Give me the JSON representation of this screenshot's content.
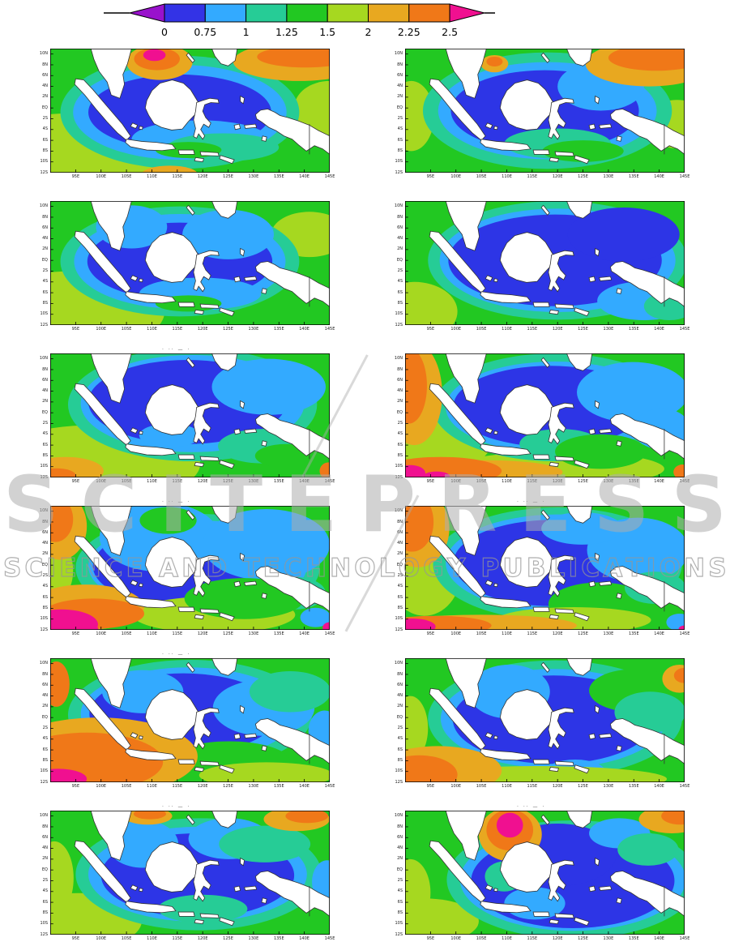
{
  "colorbar": {
    "tick_labels": [
      "0",
      "0.75",
      "1",
      "1.25",
      "1.5",
      "2",
      "2.25",
      "2.5"
    ],
    "segment_colors": [
      "#3333e6",
      "#33aaff",
      "#26cc96",
      "#22c822",
      "#a6d820",
      "#e8a820",
      "#f07818"
    ],
    "left_arrow_color": "#9912cc",
    "right_arrow_color": "#f01090"
  },
  "axes": {
    "lat_labels": [
      "10N",
      "8N",
      "6N",
      "4N",
      "2N",
      "EQ",
      "2S",
      "4S",
      "6S",
      "8S",
      "10S",
      "12S"
    ],
    "lon_labels": [
      "95E",
      "100E",
      "105E",
      "110E",
      "115E",
      "120E",
      "125E",
      "130E",
      "135E",
      "140E",
      "145E"
    ]
  },
  "watermark": {
    "line1": "SCITEPRESS",
    "line2": "SCIENCE AND TECHNOLOGY PUBLICATIONS"
  },
  "panel_title_marks": "· ·· — ·",
  "palette": {
    "blue": "#2d35e6",
    "cyan": "#33aaff",
    "teal": "#26cc96",
    "green": "#22c822",
    "ygreen": "#a6d820",
    "amber": "#e8a820",
    "orange": "#f07818",
    "pink": "#f01090",
    "purple": "#9912cc",
    "land": "#ffffff",
    "coast": "#333333"
  },
  "panels": [
    {
      "id": "row1-left",
      "marks": false,
      "base": "green",
      "blobs": [
        [
          "ygreen",
          40,
          225,
          230,
          105
        ],
        [
          "ygreen",
          550,
          110,
          70,
          50
        ],
        [
          "teal",
          255,
          118,
          235,
          105
        ],
        [
          "cyan",
          255,
          118,
          210,
          88
        ],
        [
          "blue",
          255,
          118,
          180,
          70
        ],
        [
          "cyan",
          295,
          168,
          135,
          35
        ],
        [
          "teal",
          340,
          183,
          110,
          26
        ],
        [
          "green",
          272,
          188,
          65,
          15
        ],
        [
          "amber",
          235,
          233,
          55,
          16
        ],
        [
          "amber",
          215,
          25,
          65,
          33
        ],
        [
          "orange",
          210,
          19,
          45,
          21
        ],
        [
          "pink",
          205,
          12,
          22,
          11
        ],
        [
          "amber",
          490,
          24,
          130,
          36
        ],
        [
          "orange",
          502,
          15,
          95,
          20
        ]
      ]
    },
    {
      "id": "row1-right",
      "marks": false,
      "base": "green",
      "blobs": [
        [
          "ygreen",
          12,
          125,
          45,
          65
        ],
        [
          "ygreen",
          535,
          140,
          60,
          45
        ],
        [
          "teal",
          280,
          115,
          245,
          108
        ],
        [
          "cyan",
          280,
          115,
          215,
          90
        ],
        [
          "blue",
          275,
          115,
          185,
          75
        ],
        [
          "cyan",
          385,
          70,
          85,
          45
        ],
        [
          "teal",
          300,
          176,
          105,
          28
        ],
        [
          "green",
          350,
          190,
          80,
          20
        ],
        [
          "amber",
          480,
          28,
          125,
          42
        ],
        [
          "orange",
          495,
          17,
          95,
          24
        ],
        [
          "amber",
          176,
          28,
          27,
          16
        ],
        [
          "orange",
          176,
          24,
          16,
          9
        ]
      ]
    },
    {
      "id": "row2-left",
      "marks": false,
      "base": "green",
      "blobs": [
        [
          "ygreen",
          45,
          205,
          180,
          75
        ],
        [
          "ygreen",
          510,
          62,
          75,
          42
        ],
        [
          "teal",
          255,
          112,
          235,
          102
        ],
        [
          "cyan",
          255,
          112,
          208,
          88
        ],
        [
          "blue",
          255,
          112,
          182,
          72
        ],
        [
          "cyan",
          160,
          48,
          70,
          40
        ],
        [
          "cyan",
          350,
          62,
          90,
          46
        ],
        [
          "cyan",
          295,
          172,
          120,
          30
        ],
        [
          "green",
          272,
          190,
          65,
          15
        ]
      ]
    },
    {
      "id": "row2-right",
      "marks": false,
      "base": "green",
      "blobs": [
        [
          "ygreen",
          18,
          205,
          85,
          55
        ],
        [
          "teal",
          300,
          110,
          255,
          110
        ],
        [
          "cyan",
          300,
          110,
          232,
          96
        ],
        [
          "blue",
          295,
          110,
          210,
          85
        ],
        [
          "blue",
          430,
          62,
          110,
          50
        ],
        [
          "cyan",
          470,
          185,
          92,
          36
        ],
        [
          "teal",
          520,
          195,
          50,
          26
        ]
      ]
    },
    {
      "id": "row3-left",
      "marks": true,
      "base": "green",
      "blobs": [
        [
          "ygreen",
          85,
          205,
          210,
          72
        ],
        [
          "teal",
          280,
          95,
          245,
          105
        ],
        [
          "cyan",
          280,
          93,
          220,
          90
        ],
        [
          "blue",
          270,
          90,
          195,
          78
        ],
        [
          "cyan",
          430,
          62,
          112,
          52
        ],
        [
          "cyan",
          235,
          152,
          60,
          22
        ],
        [
          "teal",
          420,
          172,
          90,
          32
        ],
        [
          "green",
          465,
          190,
          62,
          22
        ],
        [
          "amber",
          30,
          218,
          75,
          26
        ],
        [
          "orange",
          12,
          226,
          38,
          13
        ],
        [
          "orange",
          548,
          218,
          18,
          16
        ]
      ]
    },
    {
      "id": "row3-right",
      "marks": false,
      "base": "green",
      "blobs": [
        [
          "ygreen",
          60,
          150,
          115,
          75
        ],
        [
          "ygreen",
          300,
          214,
          210,
          32
        ],
        [
          "teal",
          295,
          100,
          240,
          100
        ],
        [
          "cyan",
          295,
          100,
          215,
          85
        ],
        [
          "blue",
          285,
          98,
          190,
          75
        ],
        [
          "cyan",
          448,
          72,
          110,
          56
        ],
        [
          "cyan",
          505,
          140,
          56,
          38
        ],
        [
          "teal",
          305,
          168,
          80,
          28
        ],
        [
          "green",
          385,
          182,
          90,
          32
        ],
        [
          "amber",
          18,
          75,
          55,
          95
        ],
        [
          "orange",
          8,
          60,
          35,
          70
        ],
        [
          "amber",
          160,
          220,
          150,
          22
        ],
        [
          "orange",
          70,
          218,
          120,
          26
        ],
        [
          "pink",
          10,
          222,
          30,
          15
        ],
        [
          "pink",
          62,
          228,
          26,
          9
        ],
        [
          "orange",
          546,
          220,
          18,
          14
        ]
      ]
    },
    {
      "id": "row4-left",
      "marks": true,
      "base": "green",
      "blobs": [
        [
          "ygreen",
          10,
          120,
          35,
          55
        ],
        [
          "teal",
          290,
          115,
          240,
          100
        ],
        [
          "cyan",
          290,
          112,
          215,
          85
        ],
        [
          "blue",
          272,
          112,
          188,
          76
        ],
        [
          "cyan",
          215,
          58,
          118,
          64
        ],
        [
          "green",
          232,
          27,
          56,
          25
        ],
        [
          "cyan",
          425,
          72,
          125,
          66
        ],
        [
          "teal",
          482,
          162,
          60,
          30
        ],
        [
          "ygreen",
          322,
          202,
          160,
          34
        ],
        [
          "green",
          382,
          172,
          118,
          38
        ],
        [
          "amber",
          70,
          188,
          115,
          42
        ],
        [
          "orange",
          85,
          200,
          100,
          28
        ],
        [
          "amber",
          20,
          38,
          52,
          62
        ],
        [
          "orange",
          10,
          25,
          35,
          42
        ],
        [
          "pink",
          22,
          220,
          72,
          28
        ],
        [
          "pink",
          0,
          230,
          95,
          22
        ],
        [
          "cyan",
          522,
          207,
          30,
          18
        ],
        [
          "pink",
          549,
          226,
          13,
          10
        ]
      ]
    },
    {
      "id": "row4-right",
      "marks": true,
      "base": "green",
      "blobs": [
        [
          "ygreen",
          38,
          122,
          72,
          82
        ],
        [
          "teal",
          300,
          108,
          245,
          105
        ],
        [
          "cyan",
          300,
          106,
          220,
          90
        ],
        [
          "blue",
          290,
          106,
          195,
          80
        ],
        [
          "cyan",
          458,
          82,
          100,
          60
        ],
        [
          "cyan",
          348,
          42,
          80,
          30
        ],
        [
          "green",
          382,
          182,
          100,
          40
        ],
        [
          "ygreen",
          332,
          212,
          152,
          24
        ],
        [
          "amber",
          25,
          42,
          62,
          72
        ],
        [
          "orange",
          14,
          30,
          42,
          55
        ],
        [
          "amber",
          150,
          222,
          188,
          20
        ],
        [
          "orange",
          60,
          222,
          110,
          18
        ],
        [
          "pink",
          14,
          224,
          46,
          15
        ],
        [
          "teal",
          492,
          152,
          60,
          30
        ],
        [
          "cyan",
          540,
          216,
          26,
          16
        ],
        [
          "pink",
          549,
          229,
          11,
          7
        ]
      ]
    },
    {
      "id": "row5-left",
      "marks": true,
      "base": "green",
      "blobs": [
        [
          "teal",
          275,
          105,
          240,
          102
        ],
        [
          "cyan",
          272,
          103,
          212,
          86
        ],
        [
          "blue",
          262,
          103,
          185,
          75
        ],
        [
          "cyan",
          182,
          62,
          80,
          40
        ],
        [
          "cyan",
          420,
          92,
          100,
          52
        ],
        [
          "teal",
          472,
          62,
          80,
          38
        ],
        [
          "green",
          352,
          192,
          120,
          38
        ],
        [
          "ygreen",
          425,
          217,
          132,
          24
        ],
        [
          "cyan",
          540,
          135,
          32,
          38
        ],
        [
          "amber",
          95,
          182,
          195,
          72
        ],
        [
          "orange",
          72,
          192,
          150,
          54
        ],
        [
          "pink",
          16,
          224,
          56,
          19
        ],
        [
          "orange",
          12,
          48,
          26,
          42
        ]
      ]
    },
    {
      "id": "row5-right",
      "marks": false,
      "base": "green",
      "blobs": [
        [
          "ygreen",
          10,
          130,
          35,
          60
        ],
        [
          "teal",
          295,
          112,
          250,
          108
        ],
        [
          "cyan",
          292,
          112,
          222,
          92
        ],
        [
          "blue",
          292,
          114,
          198,
          82
        ],
        [
          "cyan",
          205,
          62,
          80,
          50
        ],
        [
          "green",
          452,
          60,
          90,
          40
        ],
        [
          "teal",
          482,
          100,
          70,
          38
        ],
        [
          "cyan",
          335,
          212,
          60,
          24
        ],
        [
          "ygreen",
          260,
          224,
          255,
          24
        ],
        [
          "amber",
          65,
          208,
          125,
          45
        ],
        [
          "orange",
          28,
          216,
          75,
          36
        ],
        [
          "amber",
          540,
          38,
          34,
          26
        ],
        [
          "orange",
          549,
          32,
          20,
          14
        ]
      ]
    },
    {
      "id": "row6-left",
      "marks": true,
      "base": "green",
      "blobs": [
        [
          "ygreen",
          55,
          205,
          125,
          52
        ],
        [
          "ygreen",
          8,
          125,
          38,
          68
        ],
        [
          "teal",
          292,
          118,
          242,
          104
        ],
        [
          "cyan",
          290,
          118,
          215,
          88
        ],
        [
          "blue",
          290,
          120,
          190,
          78
        ],
        [
          "cyan",
          182,
          62,
          70,
          44
        ],
        [
          "cyan",
          352,
          52,
          80,
          38
        ],
        [
          "teal",
          422,
          62,
          90,
          34
        ],
        [
          "cyan",
          545,
          132,
          30,
          40
        ],
        [
          "teal",
          300,
          182,
          88,
          26
        ],
        [
          "amber",
          192,
          10,
          48,
          16
        ],
        [
          "orange",
          196,
          6,
          32,
          10
        ],
        [
          "amber",
          485,
          16,
          65,
          22
        ],
        [
          "orange",
          505,
          10,
          42,
          13
        ]
      ]
    },
    {
      "id": "row6-right",
      "marks": true,
      "base": "green",
      "blobs": [
        [
          "ygreen",
          10,
          152,
          40,
          62
        ],
        [
          "ygreen",
          40,
          205,
          105,
          42
        ],
        [
          "teal",
          330,
          128,
          248,
          110
        ],
        [
          "cyan",
          330,
          128,
          222,
          95
        ],
        [
          "blue",
          330,
          130,
          200,
          88
        ],
        [
          "blue",
          300,
          82,
          115,
          58
        ],
        [
          "cyan",
          422,
          42,
          60,
          28
        ],
        [
          "cyan",
          255,
          172,
          60,
          30
        ],
        [
          "teal",
          478,
          72,
          60,
          30
        ],
        [
          "teal",
          195,
          122,
          38,
          28
        ],
        [
          "amber",
          207,
          44,
          62,
          50
        ],
        [
          "orange",
          206,
          36,
          46,
          38
        ],
        [
          "pink",
          206,
          27,
          26,
          23
        ],
        [
          "amber",
          525,
          16,
          65,
          26
        ],
        [
          "orange",
          542,
          10,
          38,
          16
        ]
      ]
    }
  ]
}
